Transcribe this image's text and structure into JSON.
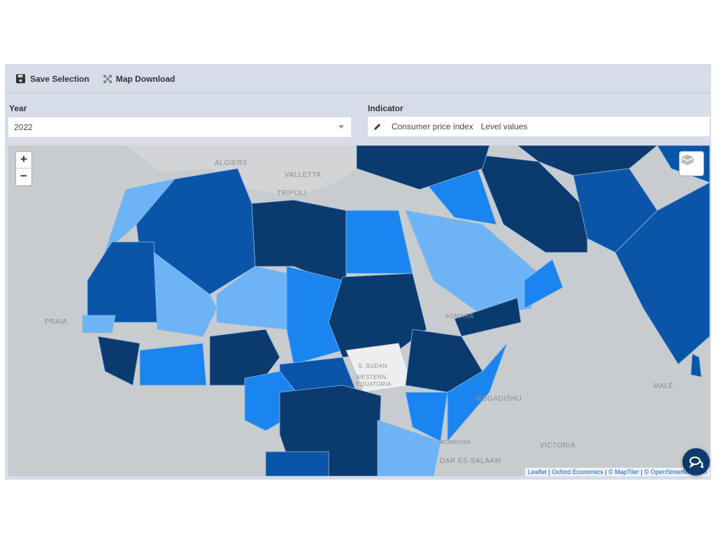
{
  "toolbar": {
    "save_label": "Save Selection",
    "download_label": "Map Download"
  },
  "filters": {
    "year": {
      "label": "Year",
      "value": "2022"
    },
    "indicator": {
      "label": "Indicator",
      "value": "Consumer price index",
      "unit": "Level values"
    }
  },
  "map": {
    "zoom_in": "+",
    "zoom_out": "−",
    "labels": [
      "ALGIERS",
      "VALLETTA",
      "TRIPOLI",
      "PRAIA",
      "S. SUDAN",
      "WESTERN EQUATORIA",
      "MALÉ",
      "MOGADISHU",
      "VICTORIA",
      "DAR ES-SALAAM",
      "MOMBASA",
      "ASMARA"
    ],
    "attribution": {
      "leaflet": "Leaflet",
      "oxford": "Oxford Economics",
      "maptiler": "© MapTiler",
      "osm": "© OpenStreetMap con"
    },
    "colors": {
      "darkest": "#0b3a6e",
      "dark": "#0a55a8",
      "mid": "#1a85f0",
      "light": "#6cb4f5",
      "no_data": "#eeeeee",
      "background": "#c8ccce"
    },
    "icons": [
      "layers-icon",
      "chat-icon"
    ]
  }
}
